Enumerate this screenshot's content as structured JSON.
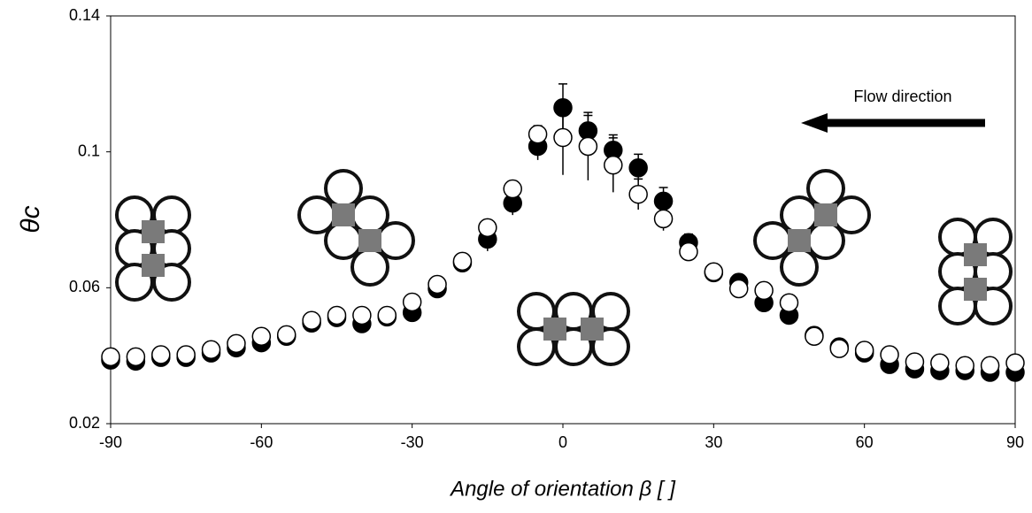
{
  "chart_data": {
    "type": "scatter",
    "xlabel": "Angle of orientation β [ ]",
    "ylabel": "θc",
    "annotation": "Flow direction",
    "xlim": [
      -90,
      90
    ],
    "xticks": [
      -90,
      -60,
      -30,
      0,
      30,
      60,
      90
    ],
    "ylim": [
      0.02,
      0.14
    ],
    "yticks": [
      0.02,
      0.06,
      0.1,
      0.14
    ],
    "x": [
      -90,
      -85,
      -80,
      -75,
      -70,
      -65,
      -60,
      -55,
      -50,
      -45,
      -40,
      -35,
      -30,
      -25,
      -20,
      -15,
      -10,
      -5,
      0,
      5,
      10,
      15,
      20,
      25,
      30,
      35,
      40,
      45,
      50,
      55,
      60,
      65,
      70,
      75,
      80,
      85,
      90
    ],
    "series": [
      {
        "color": "#000000",
        "fill": "#000000",
        "values": [
          0.0387,
          0.0384,
          0.0395,
          0.0395,
          0.0408,
          0.0423,
          0.0438,
          0.0457,
          0.0496,
          0.0512,
          0.0494,
          0.0514,
          0.0527,
          0.0597,
          0.0673,
          0.0743,
          0.0849,
          0.1016,
          0.113,
          0.1062,
          0.1005,
          0.0953,
          0.0855,
          0.0733,
          0.0644,
          0.0616,
          0.0556,
          0.0519,
          0.046,
          0.0426,
          0.0408,
          0.0374,
          0.0361,
          0.0356,
          0.0356,
          0.0351,
          0.0351
        ],
        "errors": [
          0.001,
          0.001,
          0.001,
          0.001,
          0.0015,
          0.0015,
          0.002,
          0.0015,
          0.0015,
          0.0015,
          0.002,
          0.0015,
          0.0025,
          0.0025,
          0.002,
          0.0035,
          0.0035,
          0.004,
          0.007,
          0.0045,
          0.0045,
          0.004,
          0.004,
          0.0025,
          0.002,
          0.0015,
          0.0015,
          0.0025,
          0.001,
          0.001,
          0.001,
          0.001,
          0.001,
          0.001,
          0.001,
          0.001,
          0.001
        ]
      },
      {
        "color": "#000000",
        "fill": "#ffffff",
        "values": [
          0.0397,
          0.0397,
          0.0403,
          0.0403,
          0.0418,
          0.0436,
          0.0457,
          0.0462,
          0.0504,
          0.0519,
          0.0519,
          0.0519,
          0.0558,
          0.061,
          0.0678,
          0.0777,
          0.0891,
          0.1052,
          0.1042,
          0.1016,
          0.0961,
          0.0875,
          0.0803,
          0.0706,
          0.0647,
          0.0597,
          0.0592,
          0.0556,
          0.0457,
          0.0421,
          0.0416,
          0.0403,
          0.0382,
          0.0379,
          0.0371,
          0.0371,
          0.0379
        ],
        "errors": [
          0.001,
          0.001,
          0.001,
          0.001,
          0.001,
          0.001,
          0.001,
          0.001,
          0.001,
          0.001,
          0.001,
          0.001,
          0.001,
          0.001,
          0.001,
          0.002,
          0.002,
          0.0025,
          0.011,
          0.01,
          0.008,
          0.0045,
          0.0035,
          0.002,
          0.001,
          0.0015,
          0.001,
          0.001,
          0.001,
          0.001,
          0.001,
          0.001,
          0.001,
          0.001,
          0.001,
          0.001,
          0.001
        ]
      }
    ]
  }
}
